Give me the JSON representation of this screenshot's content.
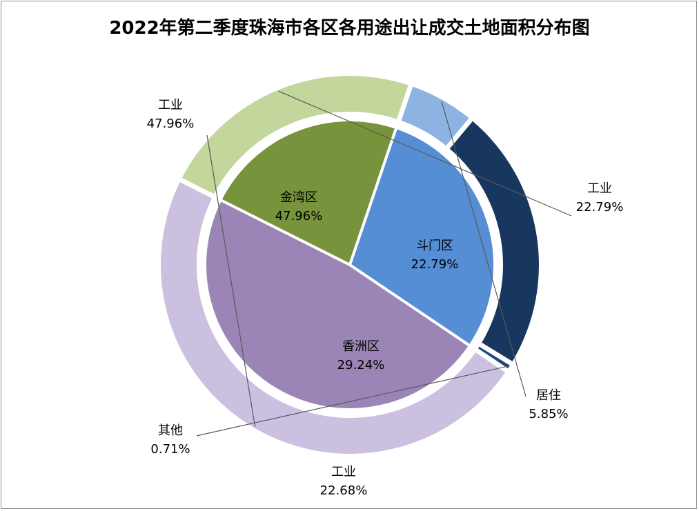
{
  "chart_data": {
    "type": "pie",
    "subtype": "nested-donut",
    "title": "2022年第二季度珠海市各区各用途出让成交土地面积分布图",
    "inner_ring": [
      {
        "name": "金湾区",
        "value": 47.96,
        "label": "47.96%",
        "color": "#9b85b6"
      },
      {
        "name": "斗门区",
        "value": 22.79,
        "label": "22.79%",
        "color": "#77933c"
      },
      {
        "name": "香洲区",
        "value": 29.24,
        "label": "29.24%",
        "color": "#558ed5"
      }
    ],
    "outer_ring": [
      {
        "name": "工业",
        "value": 47.96,
        "label": "47.96%",
        "color": "#ccc0e0",
        "district": "金湾区"
      },
      {
        "name": "工业",
        "value": 22.79,
        "label": "22.79%",
        "color": "#c3d69b",
        "district": "斗门区"
      },
      {
        "name": "居住",
        "value": 5.85,
        "label": "5.85%",
        "color": "#8db3e2",
        "district": "香洲区"
      },
      {
        "name": "工业",
        "value": 22.68,
        "label": "22.68%",
        "color": "#17375e",
        "district": "香洲区"
      },
      {
        "name": "其他",
        "value": 0.71,
        "label": "0.71%",
        "color": "#1f497d",
        "district": "香洲区"
      }
    ],
    "legend": "none"
  }
}
